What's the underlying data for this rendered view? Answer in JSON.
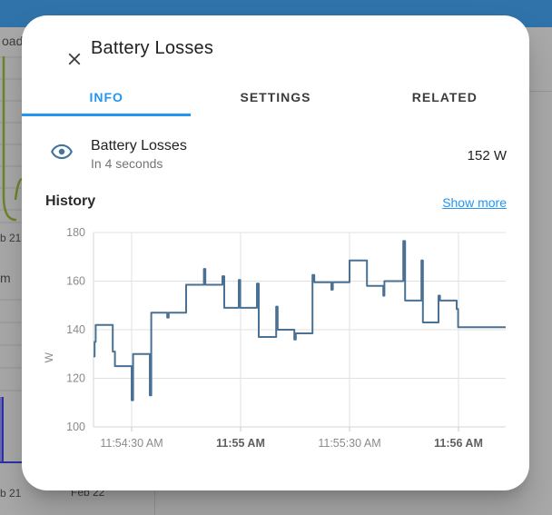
{
  "app": {
    "header_color": "#2f73aa"
  },
  "dialog": {
    "title": "Battery Losses",
    "tabs": [
      {
        "label": "INFO",
        "active": true
      },
      {
        "label": "SETTINGS",
        "active": false
      },
      {
        "label": "RELATED",
        "active": false
      }
    ],
    "entity": {
      "name": "Battery Losses",
      "last_changed": "In 4 seconds",
      "state": "152 W"
    },
    "history": {
      "heading": "History",
      "show_more": "Show more"
    },
    "accent_color": "#2196f3",
    "icon": "eye-icon"
  },
  "background": {
    "labels": {
      "load_partial": "oad",
      "feb21_left": "b 21",
      "month_partial": "m",
      "feb21_bottom": "b 21",
      "feb22": "Feb 22"
    }
  },
  "chart_data": {
    "type": "line",
    "step": true,
    "title": "History",
    "ylabel": "W",
    "unit": "W",
    "ylim": [
      100,
      180
    ],
    "yticks": [
      100,
      120,
      140,
      160,
      180
    ],
    "grid": true,
    "x_window_seconds": 113.5,
    "xticks": [
      {
        "t": 10.5,
        "label": "11:54:30 AM",
        "bold": false
      },
      {
        "t": 40.5,
        "label": "11:55 AM",
        "bold": true
      },
      {
        "t": 70.5,
        "label": "11:55:30 AM",
        "bold": false
      },
      {
        "t": 100.5,
        "label": "11:56 AM",
        "bold": true
      }
    ],
    "series": [
      {
        "name": "Battery Losses",
        "color": "#4a7194",
        "points": [
          [
            0,
            129
          ],
          [
            0.3,
            135
          ],
          [
            0.6,
            142
          ],
          [
            5.3,
            131
          ],
          [
            5.9,
            125
          ],
          [
            10.5,
            111
          ],
          [
            10.9,
            130
          ],
          [
            15.5,
            113
          ],
          [
            15.9,
            147
          ],
          [
            20.3,
            145
          ],
          [
            20.7,
            147
          ],
          [
            25.5,
            158.5
          ],
          [
            30.4,
            165
          ],
          [
            30.8,
            158.5
          ],
          [
            35.5,
            162
          ],
          [
            36.0,
            149
          ],
          [
            40.0,
            160.5
          ],
          [
            40.4,
            149
          ],
          [
            45.0,
            159
          ],
          [
            45.5,
            137
          ],
          [
            50.3,
            149.5
          ],
          [
            50.7,
            140
          ],
          [
            55.3,
            136
          ],
          [
            55.7,
            138.5
          ],
          [
            60.3,
            162.5
          ],
          [
            60.8,
            159.5
          ],
          [
            65.5,
            156.5
          ],
          [
            65.9,
            159.5
          ],
          [
            70.5,
            168.5
          ],
          [
            75.3,
            158
          ],
          [
            79.8,
            154
          ],
          [
            80.1,
            160
          ],
          [
            85.3,
            176.5
          ],
          [
            85.8,
            152
          ],
          [
            90.3,
            168.5
          ],
          [
            90.7,
            143
          ],
          [
            95.0,
            154
          ],
          [
            95.4,
            152
          ],
          [
            100.0,
            148.5
          ],
          [
            100.4,
            141
          ]
        ]
      }
    ]
  }
}
